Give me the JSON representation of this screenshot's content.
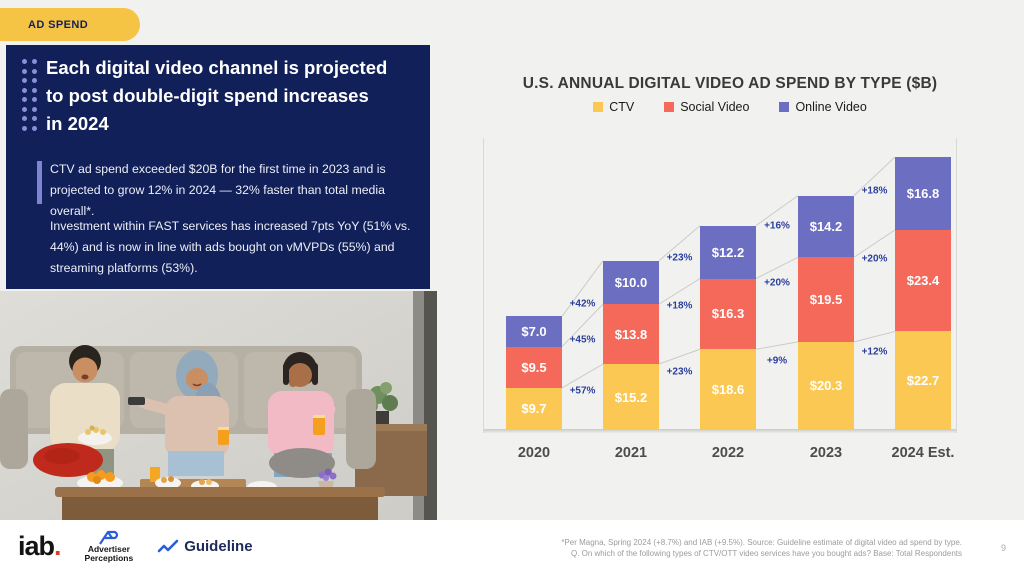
{
  "slide": {
    "badge_label": "AD SPEND",
    "title_lines": [
      "Each digital video channel is projected",
      "to post double-digit spend increases",
      "in 2024"
    ],
    "paragraph1": "CTV ad spend exceeded $20B for the first time in 2023 and is projected to grow 12% in 2024 — 32% faster than total media overall*.",
    "paragraph2": "Investment within FAST services has increased 7pts YoY (51% vs. 44%) and is now in line with ads bought on vMVPDs (55%) and streaming platforms (53%).",
    "footnote_line1": "*Per Magna, Spring 2024 (+8.7%) and IAB (+9.5%). Source: Guideline estimate of digital video ad spend by type.",
    "footnote_line2": "Q. On which of the following types of CTV/OTT video services have you bought ads? Base: Total Respondents",
    "page_number": "9"
  },
  "footer_logos": {
    "iab_text": "iab",
    "iab_dot": ".",
    "advertiser_line1": "Advertiser",
    "advertiser_line2": "Perceptions",
    "guideline": "Guideline"
  },
  "chart_data": {
    "type": "bar",
    "stacked": true,
    "title": "U.S. ANNUAL DIGITAL VIDEO AD SPEND BY TYPE ($B)",
    "categories": [
      "2020",
      "2021",
      "2022",
      "2023",
      "2024 Est."
    ],
    "series": [
      {
        "name": "CTV",
        "color": "#FBC953",
        "values": [
          9.7,
          15.2,
          18.6,
          20.3,
          22.7
        ],
        "labels": [
          "$9.7",
          "$15.2",
          "$18.6",
          "$20.3",
          "$22.7"
        ],
        "growth": [
          "+57%",
          "+23%",
          "+9%",
          "+12%"
        ]
      },
      {
        "name": "Social Video",
        "color": "#F4695A",
        "values": [
          9.5,
          13.8,
          16.3,
          19.5,
          23.4
        ],
        "labels": [
          "$9.5",
          "$13.8",
          "$16.3",
          "$19.5",
          "$23.4"
        ],
        "growth": [
          "+45%",
          "+18%",
          "+20%",
          "+20%"
        ]
      },
      {
        "name": "Online Video",
        "color": "#6B6EC1",
        "values": [
          7.0,
          10.0,
          12.2,
          14.2,
          16.8
        ],
        "labels": [
          "$7.0",
          "$10.0",
          "$12.2",
          "$14.2",
          "$16.8"
        ],
        "growth": [
          "+42%",
          "+23%",
          "+16%",
          "+18%"
        ]
      }
    ],
    "value_prefix": "$",
    "unit": "$B",
    "legend_position": "top",
    "grid": false,
    "connector_line_color": "#CBCBC8",
    "growth_label_color": "#2B3E9C",
    "ylim": [
      0,
      63
    ]
  }
}
